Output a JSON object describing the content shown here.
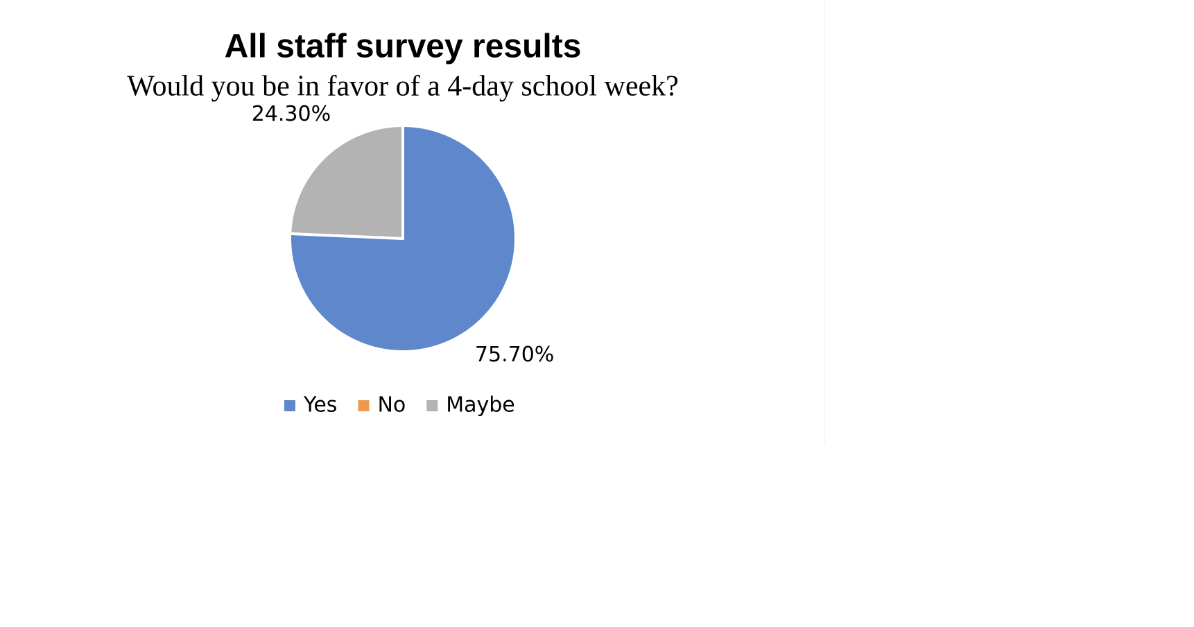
{
  "chart_data": {
    "type": "pie",
    "title": "All staff survey results",
    "subtitle": "Would you be in favor of a 4-day school week?",
    "categories": [
      "Yes",
      "No",
      "Maybe"
    ],
    "values": [
      75.7,
      0,
      24.3
    ],
    "value_labels": [
      "75.70%",
      null,
      "24.30%"
    ],
    "colors": [
      "#5f87cb",
      "#ed9a4e",
      "#b3b3b3"
    ],
    "legend": "bottom"
  }
}
